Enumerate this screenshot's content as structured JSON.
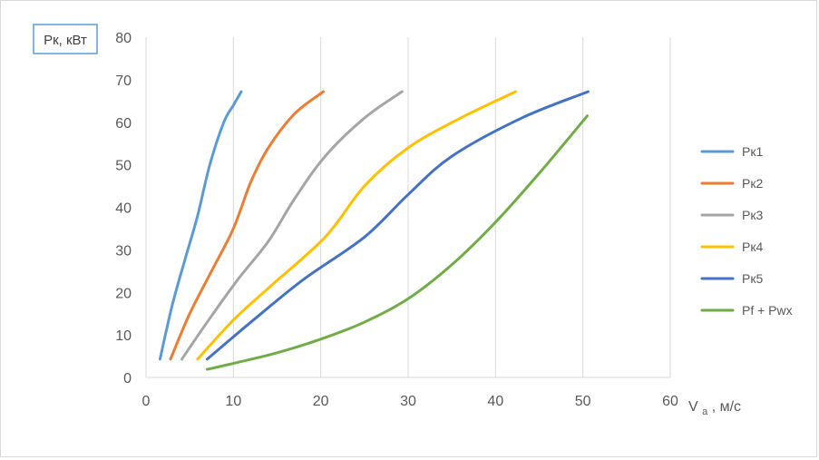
{
  "chart_data": {
    "type": "line",
    "title": "",
    "ylabel": "Рк, кВт",
    "xlabel_main": "V",
    "xlabel_sub": "a",
    "xlabel_unit": ", м/с",
    "xlim": [
      0,
      60
    ],
    "ylim": [
      0,
      80
    ],
    "x_ticks": [
      0,
      10,
      20,
      30,
      40,
      50,
      60
    ],
    "y_ticks": [
      0,
      10,
      20,
      30,
      40,
      50,
      60,
      70,
      80
    ],
    "x_tick_labels": [
      "0",
      "10",
      "20",
      "30",
      "40",
      "50",
      "60"
    ],
    "y_tick_labels": [
      "0",
      "10",
      "20",
      "30",
      "40",
      "50",
      "60",
      "70",
      "80"
    ],
    "grid": "vertical",
    "legend": "right",
    "series": [
      {
        "name": "Рк1",
        "color": "#5B9BD5",
        "points": [
          [
            1.6,
            4.3
          ],
          [
            3.0,
            17
          ],
          [
            4.5,
            28
          ],
          [
            5.9,
            38
          ],
          [
            7.3,
            50
          ],
          [
            8.9,
            60
          ],
          [
            10.0,
            64
          ],
          [
            10.9,
            67.2
          ]
        ]
      },
      {
        "name": "Рк2",
        "color": "#ED7D31",
        "points": [
          [
            2.8,
            4.3
          ],
          [
            5.0,
            15
          ],
          [
            7.5,
            25
          ],
          [
            10.0,
            35
          ],
          [
            12.0,
            46
          ],
          [
            14.0,
            54
          ],
          [
            17.0,
            62
          ],
          [
            20.3,
            67.2
          ]
        ]
      },
      {
        "name": "Рк3",
        "color": "#A5A5A5",
        "points": [
          [
            4.1,
            4.3
          ],
          [
            7.0,
            13
          ],
          [
            10.5,
            23
          ],
          [
            14.0,
            32
          ],
          [
            17.0,
            42
          ],
          [
            20.5,
            52
          ],
          [
            25.0,
            61
          ],
          [
            29.3,
            67.2
          ]
        ]
      },
      {
        "name": "Рк4",
        "color": "#FFC000",
        "points": [
          [
            5.9,
            4.3
          ],
          [
            10.0,
            13.5
          ],
          [
            14.0,
            21
          ],
          [
            20.5,
            33
          ],
          [
            25.0,
            45
          ],
          [
            30.0,
            54
          ],
          [
            36.0,
            61
          ],
          [
            42.3,
            67.2
          ]
        ]
      },
      {
        "name": "Рк5",
        "color": "#4472C4",
        "points": [
          [
            7.0,
            4.3
          ],
          [
            12.0,
            13
          ],
          [
            18.0,
            23
          ],
          [
            25.0,
            33
          ],
          [
            30.0,
            43
          ],
          [
            35.0,
            52
          ],
          [
            43.0,
            61
          ],
          [
            50.6,
            67.2
          ]
        ]
      },
      {
        "name": "Pf + Pwx",
        "color": "#70AD47",
        "points": [
          [
            7.0,
            1.9
          ],
          [
            10.0,
            3.3
          ],
          [
            15.0,
            5.8
          ],
          [
            20.0,
            9.0
          ],
          [
            25.0,
            13.0
          ],
          [
            30.0,
            18.5
          ],
          [
            35.0,
            26.5
          ],
          [
            40.0,
            36.5
          ],
          [
            45.0,
            48.0
          ],
          [
            50.5,
            61.5
          ]
        ]
      }
    ]
  }
}
